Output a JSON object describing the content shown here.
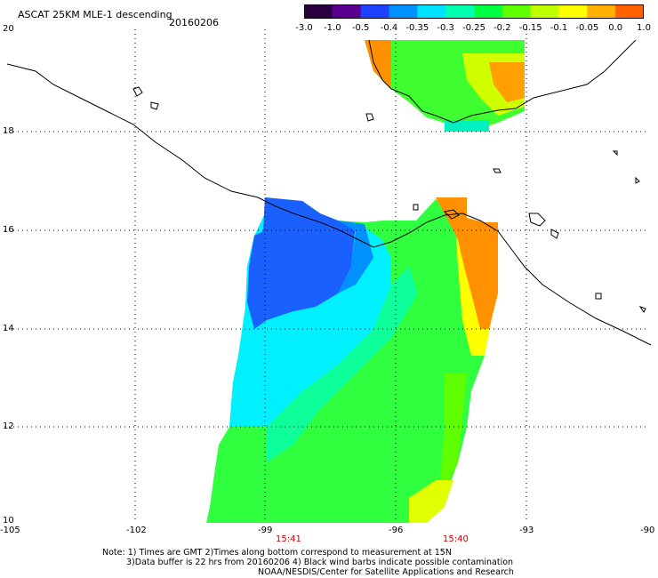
{
  "header": {
    "title": "ASCAT 25KM MLE-1 descending",
    "date": "20160206"
  },
  "colorbar": {
    "colors": [
      "#2a0040",
      "#5a008f",
      "#2040ff",
      "#0090ff",
      "#00e0ff",
      "#00ffb0",
      "#00ff40",
      "#60ff00",
      "#c0ff00",
      "#ffff00",
      "#ffb000",
      "#ff6000",
      "#ff0000"
    ],
    "ticks": [
      "-3.0",
      "-1.0",
      "-0.5",
      "-0.4",
      "-0.35",
      "-0.3",
      "-0.25",
      "-0.2",
      "-0.15",
      "-0.1",
      "-0.05",
      "0.0",
      "1.0"
    ]
  },
  "axes": {
    "lon_ticks": [
      "-105",
      "-102",
      "-99",
      "-96",
      "-93",
      "-90"
    ],
    "lat_ticks": [
      "20",
      "18",
      "16",
      "14",
      "12",
      "10"
    ],
    "lon_range": [
      -105,
      -90
    ],
    "lat_range": [
      10,
      20
    ]
  },
  "times": [
    "15:41",
    "15:40"
  ],
  "notes": [
    "Note: 1) Times are GMT 2)Times along bottom correspond to measurement at 15N",
    "3)Data buffer is 22 hrs from 20160206 4) Black wind barbs indicate possible contamination",
    "NOAA/NESDIS/Center for Satellite Applications and Research"
  ]
}
